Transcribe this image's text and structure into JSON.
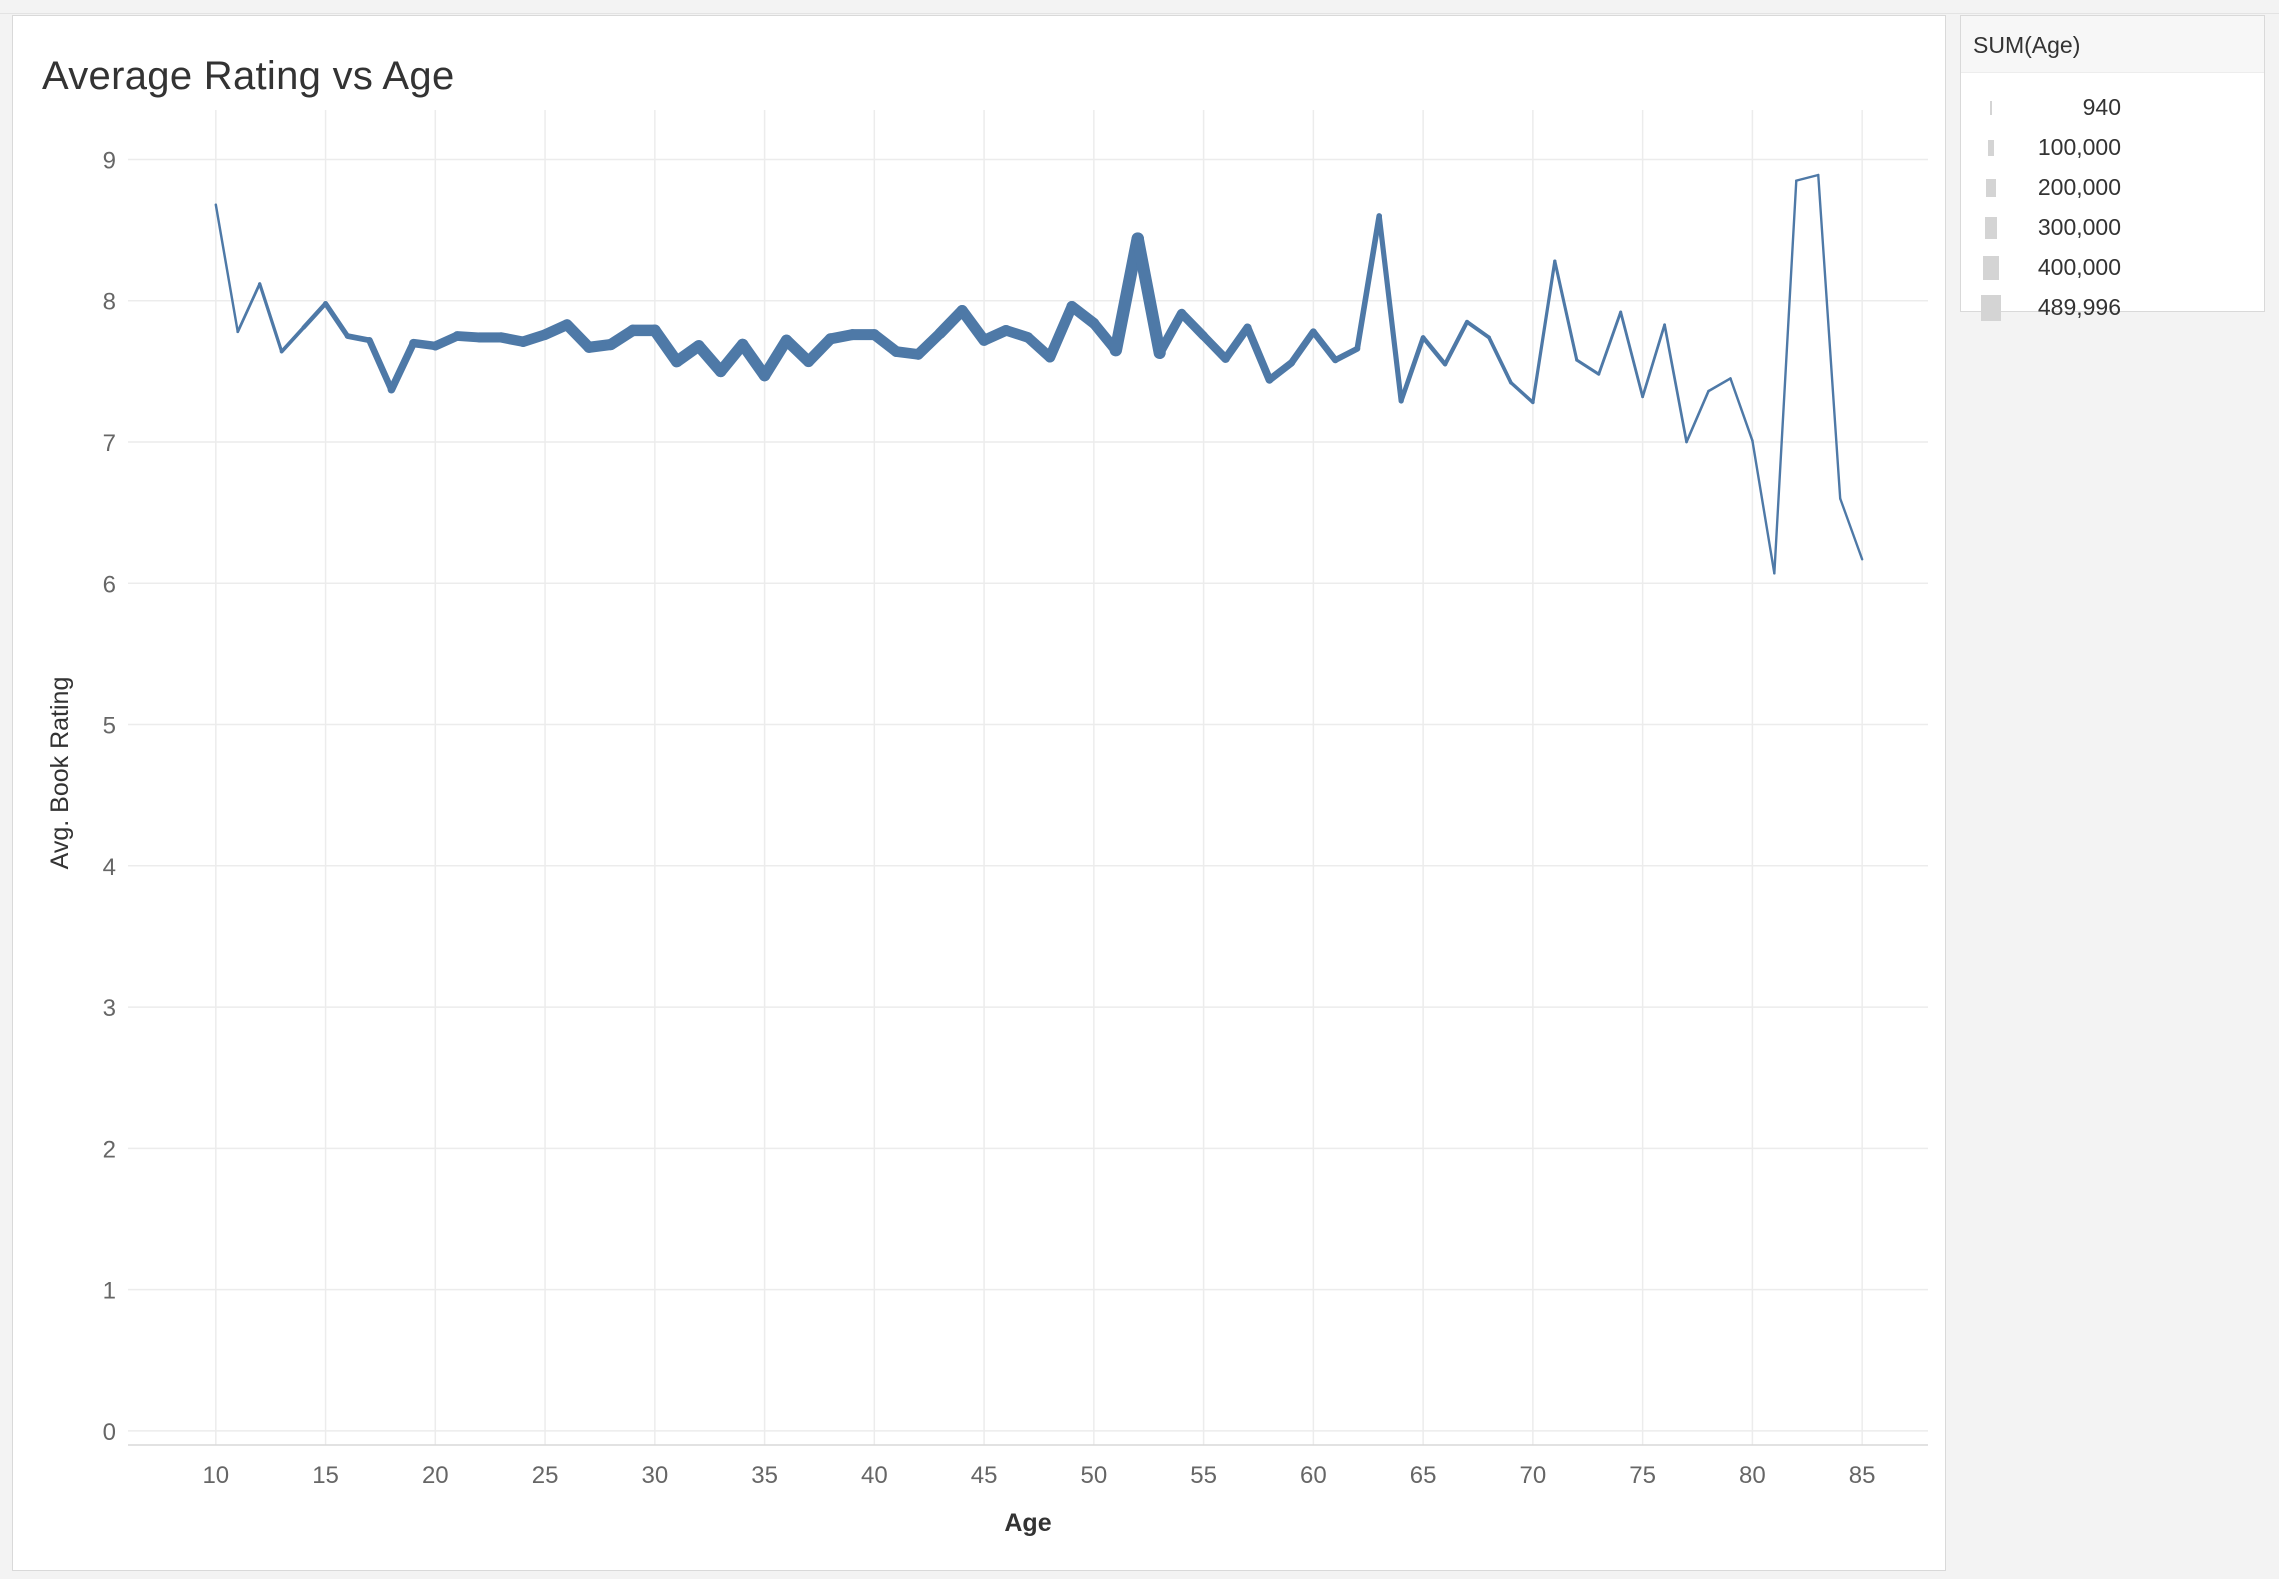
{
  "chart_data": {
    "type": "line",
    "title": "Average Rating vs Age",
    "xlabel": "Age",
    "ylabel": "Avg. Book Rating",
    "xlim": [
      6,
      88
    ],
    "ylim": [
      -0.1,
      9.35
    ],
    "x_ticks": [
      10,
      15,
      20,
      25,
      30,
      35,
      40,
      45,
      50,
      55,
      60,
      65,
      70,
      75,
      80,
      85
    ],
    "y_ticks": [
      0,
      1,
      2,
      3,
      4,
      5,
      6,
      7,
      8,
      9
    ],
    "grid": true,
    "size_encoding": "SUM(Age)",
    "series": [
      {
        "color": "#4e79a7",
        "x": [
          10,
          11,
          12,
          13,
          14,
          15,
          16,
          17,
          18,
          19,
          20,
          21,
          22,
          23,
          24,
          25,
          26,
          27,
          28,
          29,
          30,
          31,
          32,
          33,
          34,
          35,
          36,
          37,
          38,
          39,
          40,
          41,
          42,
          43,
          44,
          45,
          46,
          47,
          48,
          49,
          50,
          51,
          52,
          53,
          54,
          55,
          56,
          57,
          58,
          59,
          60,
          61,
          62,
          63,
          64,
          65,
          66,
          67,
          68,
          69,
          70,
          71,
          72,
          73,
          74,
          75,
          76,
          77,
          78,
          79,
          80,
          81,
          82,
          83,
          84,
          85
        ],
        "y": [
          8.68,
          7.78,
          8.12,
          7.64,
          7.81,
          7.98,
          7.75,
          7.72,
          7.37,
          7.7,
          7.68,
          7.75,
          7.74,
          7.74,
          7.71,
          7.76,
          7.83,
          7.67,
          7.69,
          7.79,
          7.79,
          7.57,
          7.68,
          7.5,
          7.69,
          7.47,
          7.72,
          7.57,
          7.73,
          7.76,
          7.76,
          7.64,
          7.62,
          7.77,
          7.93,
          7.72,
          7.79,
          7.74,
          7.6,
          7.96,
          7.84,
          7.65,
          8.44,
          7.63,
          7.91,
          7.75,
          7.59,
          7.81,
          7.44,
          7.56,
          7.78,
          7.58,
          7.66,
          8.6,
          7.29,
          7.74,
          7.55,
          7.85,
          7.74,
          7.42,
          7.28,
          8.28,
          7.58,
          7.48,
          7.92,
          7.32,
          7.83,
          7.0,
          7.36,
          7.45,
          7.01,
          6.07,
          8.85,
          8.89,
          6.6,
          6.17
        ],
        "sum_age": [
          940,
          1650,
          4200,
          8000,
          14000,
          26000,
          38000,
          52000,
          80000,
          110000,
          145000,
          175000,
          195000,
          210000,
          220000,
          230000,
          240000,
          250000,
          260000,
          272000,
          281000,
          282000,
          280000,
          278000,
          275000,
          270000,
          262000,
          255000,
          250000,
          245000,
          240000,
          230000,
          222000,
          238000,
          268000,
          245000,
          230000,
          215000,
          210000,
          240000,
          232000,
          200000,
          489996,
          170000,
          155000,
          140000,
          125000,
          112000,
          95000,
          82000,
          70000,
          58000,
          46000,
          38000,
          28000,
          22000,
          18000,
          15000,
          12000,
          9000,
          6500,
          5600,
          4700,
          3800,
          3300,
          2800,
          2400,
          2000,
          1700,
          1400,
          1200,
          1000,
          1000,
          1000,
          1000,
          1000
        ]
      }
    ]
  },
  "legend": {
    "title": "SUM(Age)",
    "items": [
      {
        "label": "940",
        "value": 940
      },
      {
        "label": "100,000",
        "value": 100000
      },
      {
        "label": "200,000",
        "value": 200000
      },
      {
        "label": "300,000",
        "value": 300000
      },
      {
        "label": "400,000",
        "value": 400000
      },
      {
        "label": "489,996",
        "value": 489996
      }
    ]
  }
}
